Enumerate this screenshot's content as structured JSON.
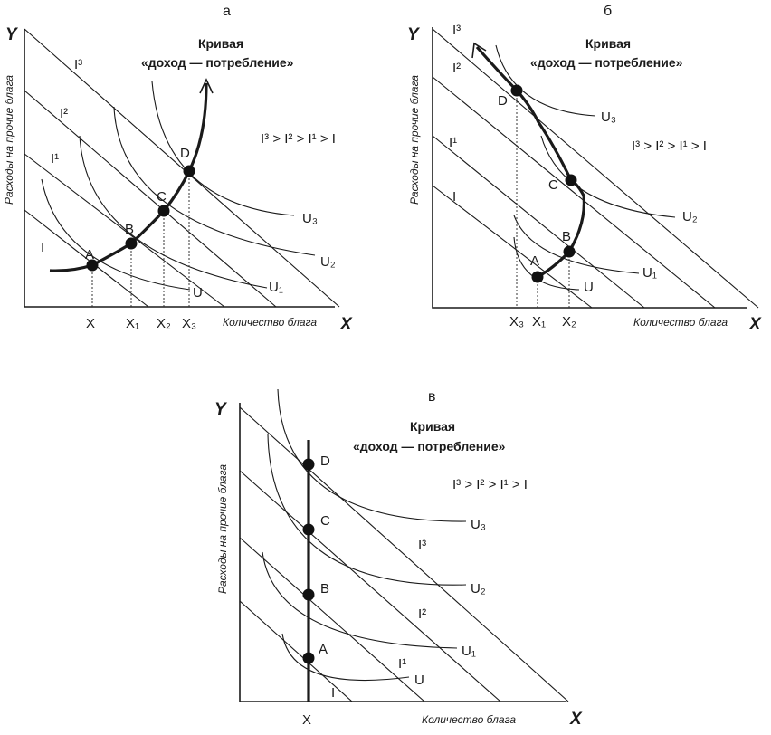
{
  "panels": [
    {
      "letter": "а",
      "y_axis": "Y",
      "x_axis": "X",
      "y_caption": "Расходы на прочие блага",
      "x_caption": "Количество блага",
      "curve_title_line1": "Кривая",
      "curve_title_line2": "«доход — потребление»",
      "inequality": "I³ > I² > I¹ > I",
      "budget_labels": [
        "I",
        "I¹",
        "I²",
        "I³"
      ],
      "indiff_labels": [
        "U",
        "U₁",
        "U₂",
        "U₃"
      ],
      "points": [
        "A",
        "B",
        "C",
        "D"
      ],
      "x_ticks": [
        "X",
        "X₁",
        "X₂",
        "X₃"
      ]
    },
    {
      "letter": "б",
      "y_axis": "Y",
      "x_axis": "X",
      "y_caption": "Расходы на прочие блага",
      "x_caption": "Количество блага",
      "curve_title_line1": "Кривая",
      "curve_title_line2": "«доход — потребление»",
      "inequality": "I³ > I² > I¹ > I",
      "budget_labels": [
        "I",
        "I¹",
        "I²",
        "I³"
      ],
      "indiff_labels": [
        "U",
        "U₁",
        "U₂",
        "U₃"
      ],
      "points": [
        "A",
        "B",
        "C",
        "D"
      ],
      "x_ticks": [
        "X₃",
        "X₁",
        "X₂"
      ]
    },
    {
      "letter": "в",
      "y_axis": "Y",
      "x_axis": "X",
      "y_caption": "Расходы на прочие блага",
      "x_caption": "Количество блага",
      "curve_title_line1": "Кривая",
      "curve_title_line2": "«доход — потребление»",
      "inequality": "I³ > I² > I¹ > I",
      "budget_labels": [
        "I",
        "I¹",
        "I²",
        "I³"
      ],
      "indiff_labels": [
        "U",
        "U₁",
        "U₂",
        "U₃"
      ],
      "points": [
        "A",
        "B",
        "C",
        "D"
      ],
      "x_ticks": [
        "X"
      ]
    }
  ]
}
